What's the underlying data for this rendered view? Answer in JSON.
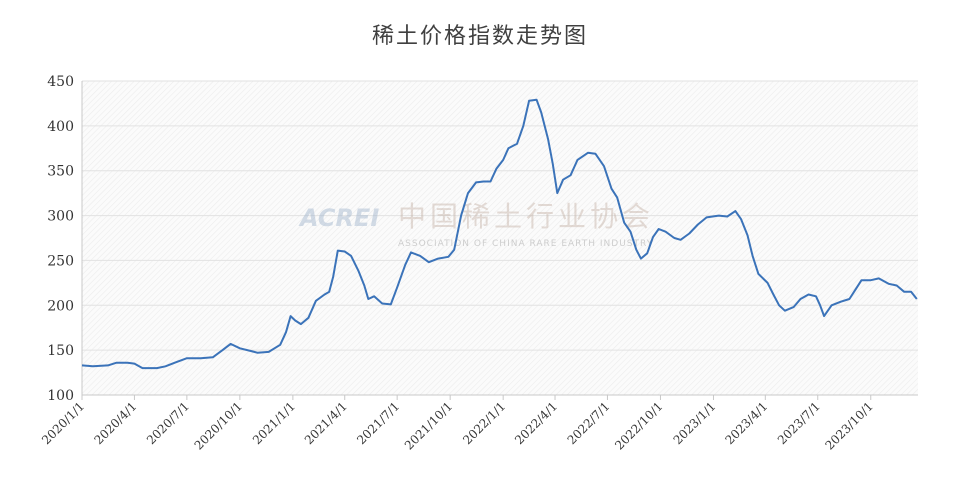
{
  "chart_data": {
    "type": "line",
    "title": "稀土价格指数走势图",
    "xlabel": "",
    "ylabel": "",
    "ylim": [
      100,
      450
    ],
    "yticks": [
      100,
      150,
      200,
      250,
      300,
      350,
      400,
      450
    ],
    "x_tick_labels": [
      "2020/1/1",
      "2020/4/1",
      "2020/7/1",
      "2020/10/1",
      "2021/1/1",
      "2021/4/1",
      "2021/7/1",
      "2021/10/1",
      "2022/1/1",
      "2022/4/1",
      "2022/7/1",
      "2022/10/1",
      "2023/1/1",
      "2023/4/1",
      "2023/7/1",
      "2023/10/1"
    ],
    "grid": true,
    "legend": "none",
    "watermark": {
      "logo": "ACREI",
      "name_cn": "中国稀土行业协会",
      "name_en": "ASSOCIATION OF CHINA RARE EARTH INDUSTRY"
    },
    "series": [
      {
        "color": "#3b73b9",
        "points": [
          [
            "2020-01-01",
            133
          ],
          [
            "2020-01-20",
            132
          ],
          [
            "2020-02-15",
            133
          ],
          [
            "2020-03-01",
            136
          ],
          [
            "2020-03-20",
            136
          ],
          [
            "2020-04-01",
            135
          ],
          [
            "2020-04-15",
            130
          ],
          [
            "2020-05-10",
            130
          ],
          [
            "2020-05-25",
            132
          ],
          [
            "2020-06-10",
            136
          ],
          [
            "2020-07-01",
            141
          ],
          [
            "2020-07-25",
            141
          ],
          [
            "2020-08-15",
            142
          ],
          [
            "2020-09-01",
            150
          ],
          [
            "2020-09-15",
            157
          ],
          [
            "2020-10-01",
            152
          ],
          [
            "2020-10-20",
            149
          ],
          [
            "2020-11-01",
            147
          ],
          [
            "2020-11-20",
            148
          ],
          [
            "2020-12-10",
            156
          ],
          [
            "2020-12-20",
            170
          ],
          [
            "2020-12-28",
            188
          ],
          [
            "2021-01-05",
            183
          ],
          [
            "2021-01-15",
            179
          ],
          [
            "2021-01-28",
            186
          ],
          [
            "2021-02-10",
            205
          ],
          [
            "2021-02-25",
            212
          ],
          [
            "2021-03-05",
            215
          ],
          [
            "2021-03-12",
            232
          ],
          [
            "2021-03-20",
            261
          ],
          [
            "2021-04-01",
            260
          ],
          [
            "2021-04-12",
            255
          ],
          [
            "2021-04-25",
            238
          ],
          [
            "2021-05-05",
            222
          ],
          [
            "2021-05-12",
            207
          ],
          [
            "2021-05-22",
            210
          ],
          [
            "2021-06-05",
            202
          ],
          [
            "2021-06-20",
            201
          ],
          [
            "2021-07-01",
            220
          ],
          [
            "2021-07-15",
            245
          ],
          [
            "2021-07-25",
            259
          ],
          [
            "2021-08-10",
            255
          ],
          [
            "2021-08-25",
            248
          ],
          [
            "2021-09-10",
            252
          ],
          [
            "2021-09-28",
            254
          ],
          [
            "2021-10-08",
            262
          ],
          [
            "2021-10-20",
            300
          ],
          [
            "2021-11-01",
            325
          ],
          [
            "2021-11-15",
            337
          ],
          [
            "2021-11-28",
            338
          ],
          [
            "2021-12-10",
            338
          ],
          [
            "2021-12-20",
            352
          ],
          [
            "2022-01-01",
            362
          ],
          [
            "2022-01-10",
            375
          ],
          [
            "2022-01-25",
            380
          ],
          [
            "2022-02-05",
            400
          ],
          [
            "2022-02-15",
            428
          ],
          [
            "2022-02-28",
            429
          ],
          [
            "2022-03-08",
            415
          ],
          [
            "2022-03-20",
            385
          ],
          [
            "2022-03-28",
            358
          ],
          [
            "2022-04-05",
            325
          ],
          [
            "2022-04-15",
            340
          ],
          [
            "2022-04-28",
            345
          ],
          [
            "2022-05-10",
            362
          ],
          [
            "2022-05-28",
            370
          ],
          [
            "2022-06-10",
            369
          ],
          [
            "2022-06-25",
            355
          ],
          [
            "2022-07-08",
            330
          ],
          [
            "2022-07-18",
            320
          ],
          [
            "2022-07-30",
            292
          ],
          [
            "2022-08-10",
            282
          ],
          [
            "2022-08-20",
            262
          ],
          [
            "2022-08-28",
            252
          ],
          [
            "2022-09-08",
            258
          ],
          [
            "2022-09-18",
            276
          ],
          [
            "2022-09-28",
            285
          ],
          [
            "2022-10-10",
            282
          ],
          [
            "2022-10-25",
            275
          ],
          [
            "2022-11-05",
            273
          ],
          [
            "2022-11-20",
            280
          ],
          [
            "2022-12-05",
            290
          ],
          [
            "2022-12-20",
            298
          ],
          [
            "2023-01-10",
            300
          ],
          [
            "2023-01-25",
            299
          ],
          [
            "2023-02-08",
            305
          ],
          [
            "2023-02-18",
            296
          ],
          [
            "2023-03-01",
            278
          ],
          [
            "2023-03-10",
            255
          ],
          [
            "2023-03-20",
            235
          ],
          [
            "2023-04-05",
            225
          ],
          [
            "2023-04-15",
            212
          ],
          [
            "2023-04-25",
            200
          ],
          [
            "2023-05-05",
            194
          ],
          [
            "2023-05-20",
            198
          ],
          [
            "2023-06-01",
            207
          ],
          [
            "2023-06-15",
            212
          ],
          [
            "2023-06-28",
            210
          ],
          [
            "2023-07-05",
            200
          ],
          [
            "2023-07-12",
            188
          ],
          [
            "2023-07-25",
            200
          ],
          [
            "2023-08-10",
            204
          ],
          [
            "2023-08-25",
            207
          ],
          [
            "2023-09-05",
            218
          ],
          [
            "2023-09-15",
            228
          ],
          [
            "2023-10-01",
            228
          ],
          [
            "2023-10-15",
            230
          ],
          [
            "2023-11-01",
            224
          ],
          [
            "2023-11-15",
            222
          ],
          [
            "2023-11-28",
            215
          ],
          [
            "2023-12-10",
            215
          ],
          [
            "2023-12-20",
            207
          ]
        ]
      }
    ]
  }
}
